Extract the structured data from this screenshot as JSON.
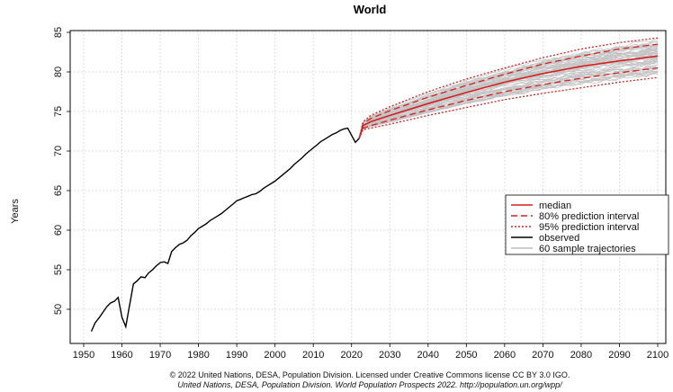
{
  "chart_data": {
    "type": "line",
    "title": "World",
    "ylabel": "Years",
    "xlabel": "",
    "xlim": [
      1947,
      2105
    ],
    "ylim": [
      46,
      85
    ],
    "xticks": [
      1950,
      1960,
      1970,
      1980,
      1990,
      2000,
      2010,
      2020,
      2030,
      2040,
      2050,
      2060,
      2070,
      2080,
      2090,
      2100
    ],
    "yticks": [
      50,
      55,
      60,
      65,
      70,
      75,
      80,
      85
    ],
    "grid": true,
    "legend": {
      "position": "right",
      "entries": [
        {
          "label": "median",
          "color": "#d62020",
          "style": "solid"
        },
        {
          "label": "80% prediction interval",
          "color": "#d62020",
          "style": "dashed"
        },
        {
          "label": "95% prediction interval",
          "color": "#d62020",
          "style": "dotted"
        },
        {
          "label": "observed",
          "color": "#000000",
          "style": "solid"
        },
        {
          "label": "60 sample trajectories",
          "color": "#bbbbbb",
          "style": "solid"
        }
      ]
    },
    "observed": {
      "x": [
        1952,
        1953,
        1954,
        1955,
        1956,
        1957,
        1958,
        1959,
        1960,
        1961,
        1962,
        1963,
        1964,
        1965,
        1966,
        1967,
        1968,
        1969,
        1970,
        1971,
        1972,
        1973,
        1974,
        1975,
        1976,
        1977,
        1978,
        1979,
        1980,
        1981,
        1982,
        1983,
        1984,
        1985,
        1986,
        1987,
        1988,
        1989,
        1990,
        1991,
        1992,
        1993,
        1994,
        1995,
        1996,
        1997,
        1998,
        1999,
        2000,
        2001,
        2002,
        2003,
        2004,
        2005,
        2006,
        2007,
        2008,
        2009,
        2010,
        2011,
        2012,
        2013,
        2014,
        2015,
        2016,
        2017,
        2018,
        2019,
        2020,
        2021,
        2022
      ],
      "y": [
        47.2,
        48.3,
        48.9,
        49.6,
        50.3,
        50.8,
        51.0,
        51.5,
        49.0,
        47.8,
        50.5,
        53.2,
        53.6,
        54.1,
        54.0,
        54.6,
        55.0,
        55.5,
        55.9,
        56.0,
        55.8,
        57.3,
        57.8,
        58.2,
        58.4,
        58.7,
        59.3,
        59.7,
        60.2,
        60.5,
        60.8,
        61.2,
        61.5,
        61.8,
        62.1,
        62.5,
        62.9,
        63.3,
        63.7,
        63.9,
        64.1,
        64.3,
        64.5,
        64.6,
        64.9,
        65.3,
        65.6,
        65.9,
        66.2,
        66.6,
        67.0,
        67.4,
        67.8,
        68.3,
        68.7,
        69.1,
        69.6,
        70.0,
        70.4,
        70.8,
        71.2,
        71.5,
        71.8,
        72.1,
        72.3,
        72.6,
        72.8,
        72.9,
        72.0,
        71.1,
        71.6
      ]
    },
    "projection": {
      "x": [
        2022,
        2023,
        2025,
        2030,
        2040,
        2050,
        2060,
        2070,
        2080,
        2090,
        2100
      ],
      "median": [
        71.6,
        73.2,
        73.7,
        74.5,
        76.0,
        77.4,
        78.7,
        79.8,
        80.7,
        81.4,
        82.0
      ],
      "pi80_low": [
        71.6,
        72.9,
        73.2,
        73.9,
        75.2,
        76.4,
        77.5,
        78.4,
        79.2,
        79.9,
        80.5
      ],
      "pi80_high": [
        71.6,
        73.5,
        74.1,
        75.1,
        76.8,
        78.3,
        79.7,
        81.0,
        82.0,
        82.9,
        83.5
      ],
      "pi95_low": [
        71.6,
        72.7,
        72.9,
        73.4,
        74.5,
        75.5,
        76.5,
        77.3,
        78.0,
        78.7,
        79.3
      ],
      "pi95_high": [
        71.6,
        73.7,
        74.5,
        75.6,
        77.5,
        79.1,
        80.5,
        81.8,
        82.9,
        83.7,
        84.3
      ]
    }
  },
  "footer": {
    "line1": "© 2022 United Nations, DESA, Population Division. Licensed under Creative Commons license CC BY 3.0 IGO.",
    "line2": "United Nations, DESA, Population Division. World Population Prospects 2022. http://population.un.org/wpp/"
  }
}
